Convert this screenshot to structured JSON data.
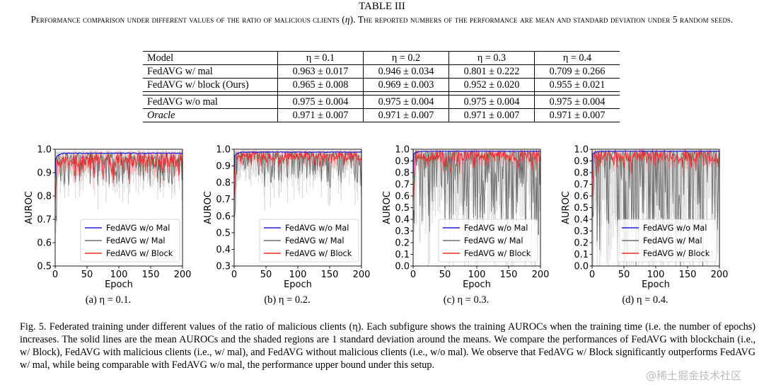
{
  "table": {
    "label": "TABLE III",
    "caption_a": "Performance comparison under different values of the ratio of malicious clients (",
    "caption_eta": "η",
    "caption_b": "). The reported numbers of the performance are mean and standard deviation under 5 random seeds.",
    "headers": [
      "Model",
      "η = 0.1",
      "η = 0.2",
      "η = 0.3",
      "η = 0.4"
    ],
    "rows": [
      [
        "FedAVG w/ mal",
        "0.963 ± 0.017",
        "0.946 ± 0.034",
        "0.801 ± 0.222",
        "0.709 ± 0.266"
      ],
      [
        "FedAVG w/ block (Ours)",
        "0.965 ± 0.008",
        "0.969 ± 0.003",
        "0.952 ± 0.020",
        "0.955 ± 0.021"
      ],
      [
        "FedAVG w/o mal",
        "0.975 ± 0.004",
        "0.975 ± 0.004",
        "0.975 ± 0.004",
        "0.975 ± 0.004"
      ],
      [
        "Oracle",
        "0.971 ± 0.007",
        "0.971 ± 0.007",
        "0.971 ± 0.007",
        "0.971 ± 0.007"
      ]
    ]
  },
  "colors": {
    "without_mal": "#1f1fd6",
    "with_mal": "#6e6e6e",
    "with_mal_band": "#d9d9d9",
    "with_block": "#ee2b2b",
    "with_block_band": "#f7a9a9"
  },
  "chart_data": [
    {
      "type": "line",
      "subcaption": "(a) η = 0.1.",
      "xlabel": "Epoch",
      "ylabel": "AUROC",
      "xlim": [
        0,
        200
      ],
      "ylim": [
        0.5,
        1.0
      ],
      "xticks": [
        0,
        50,
        100,
        150,
        200
      ],
      "yticks": [
        0.5,
        0.6,
        0.7,
        0.8,
        0.9,
        1.0
      ],
      "ytick_labels": [
        "0.5",
        "0.6",
        "0.7",
        "0.8",
        "0.9",
        "1.0"
      ],
      "legend": "lower-right",
      "series": [
        {
          "name": "FedAVG w/o Mal",
          "key": "without_mal",
          "mean": 0.975,
          "std": 0.004
        },
        {
          "name": "FedAVG w/ Mal",
          "key": "with_mal",
          "mean": 0.963,
          "std": 0.017
        },
        {
          "name": "FedAVG w/ Block",
          "key": "with_block",
          "mean": 0.965,
          "std": 0.008
        }
      ]
    },
    {
      "type": "line",
      "subcaption": "(b) η = 0.2.",
      "xlabel": "Epoch",
      "ylabel": "AUROC",
      "xlim": [
        0,
        200
      ],
      "ylim": [
        0.3,
        1.0
      ],
      "xticks": [
        0,
        50,
        100,
        150,
        200
      ],
      "yticks": [
        0.3,
        0.4,
        0.5,
        0.6,
        0.7,
        0.8,
        0.9,
        1.0
      ],
      "ytick_labels": [
        "0.3",
        "0.4",
        "0.5",
        "0.6",
        "0.7",
        "0.8",
        "0.9",
        "1.0"
      ],
      "legend": "lower-right",
      "series": [
        {
          "name": "FedAVG w/o Mal",
          "key": "without_mal",
          "mean": 0.975,
          "std": 0.004
        },
        {
          "name": "FedAVG w/ Mal",
          "key": "with_mal",
          "mean": 0.946,
          "std": 0.034
        },
        {
          "name": "FedAVG w/ Block",
          "key": "with_block",
          "mean": 0.969,
          "std": 0.003
        }
      ]
    },
    {
      "type": "line",
      "subcaption": "(c) η = 0.3.",
      "xlabel": "Epoch",
      "ylabel": "AUROC",
      "xlim": [
        0,
        200
      ],
      "ylim": [
        0.0,
        1.0
      ],
      "xticks": [
        0,
        50,
        100,
        150,
        200
      ],
      "yticks": [
        0.0,
        0.1,
        0.2,
        0.3,
        0.4,
        0.5,
        0.6,
        0.7,
        0.8,
        0.9,
        1.0
      ],
      "ytick_labels": [
        "0.0",
        "0.1",
        "0.2",
        "0.3",
        "0.4",
        "0.5",
        "0.6",
        "0.7",
        "0.8",
        "0.9",
        "1.0"
      ],
      "legend": "lower-right",
      "series": [
        {
          "name": "FedAVG w/o Mal",
          "key": "without_mal",
          "mean": 0.975,
          "std": 0.004
        },
        {
          "name": "FedAVG w/ Mal",
          "key": "with_mal",
          "mean": 0.801,
          "std": 0.222
        },
        {
          "name": "FedAVG w/ Block",
          "key": "with_block",
          "mean": 0.952,
          "std": 0.02
        }
      ]
    },
    {
      "type": "line",
      "subcaption": "(d) η = 0.4.",
      "xlabel": "Epoch",
      "ylabel": "AUROC",
      "xlim": [
        0,
        200
      ],
      "ylim": [
        0.0,
        1.0
      ],
      "xticks": [
        0,
        50,
        100,
        150,
        200
      ],
      "yticks": [
        0.0,
        0.1,
        0.2,
        0.3,
        0.4,
        0.5,
        0.6,
        0.7,
        0.8,
        0.9,
        1.0
      ],
      "ytick_labels": [
        "0.0",
        "0.1",
        "0.2",
        "0.3",
        "0.4",
        "0.5",
        "0.6",
        "0.7",
        "0.8",
        "0.9",
        "1.0"
      ],
      "legend": "lower-right",
      "series": [
        {
          "name": "FedAVG w/o Mal",
          "key": "without_mal",
          "mean": 0.975,
          "std": 0.004
        },
        {
          "name": "FedAVG w/ Mal",
          "key": "with_mal",
          "mean": 0.709,
          "std": 0.266
        },
        {
          "name": "FedAVG w/ Block",
          "key": "with_block",
          "mean": 0.955,
          "std": 0.021
        }
      ]
    }
  ],
  "figure_caption": "Fig. 5.   Federated training under different values of the ratio of malicious clients (η). Each subfigure shows the training AUROCs when the training time (i.e. the number of epochs) increases. The solid lines are the mean AUROCs and the shaded regions are 1 standard deviation around the means. We compare the performances of FedAVG with blockchain (i.e., w/ Block), FedAVG with malicious clients (i.e., w/ mal), and FedAVG without malicious clients (i.e., w/o mal). We observe that FedAVG w/ Block significantly outperforms FedAVG w/ mal, while being comparable with FedAVG w/o mal, the performance upper bound under this setup.",
  "watermark": "@稀土掘金技术社区"
}
